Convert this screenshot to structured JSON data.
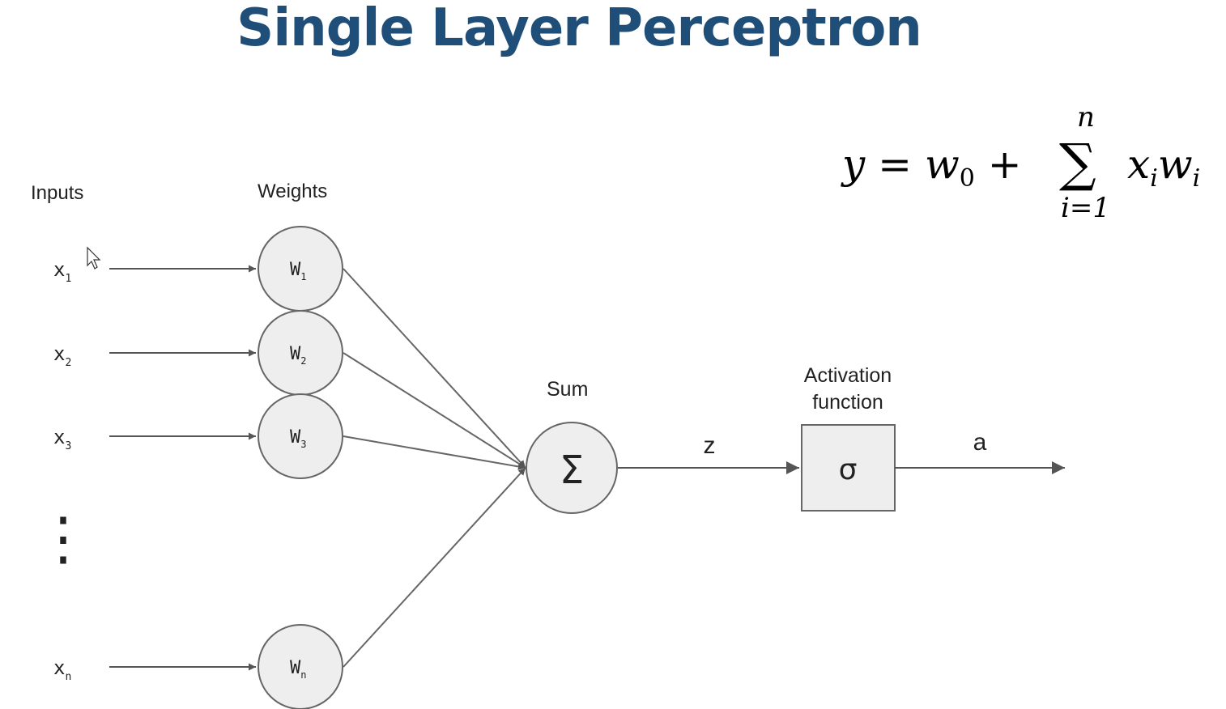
{
  "title": "Single Layer Perceptron",
  "formula": {
    "lhs": "y",
    "equals": "=",
    "w": "w",
    "w_sub": "0",
    "plus": "+",
    "sigma": "∑",
    "upper": "n",
    "lower": "i=1",
    "x": "x",
    "x_sub": "i",
    "w2": "w",
    "w2_sub": "i"
  },
  "diagram": {
    "inputs_heading": "Inputs",
    "weights_heading": "Weights",
    "sum_heading": "Sum",
    "activation_heading_line1": "Activation",
    "activation_heading_line2": "function",
    "sum_symbol": "Σ",
    "activation_symbol": "σ",
    "z_label": "z",
    "a_label": "a",
    "ellipsis": "⋮",
    "inputs": [
      {
        "var": "x",
        "sub": "1"
      },
      {
        "var": "x",
        "sub": "2"
      },
      {
        "var": "x",
        "sub": "3"
      },
      {
        "var": "x",
        "sub": "n"
      }
    ],
    "weights": [
      {
        "var": "W",
        "sub": "1"
      },
      {
        "var": "W",
        "sub": "2"
      },
      {
        "var": "W",
        "sub": "3"
      },
      {
        "var": "W",
        "sub": "n"
      }
    ]
  }
}
